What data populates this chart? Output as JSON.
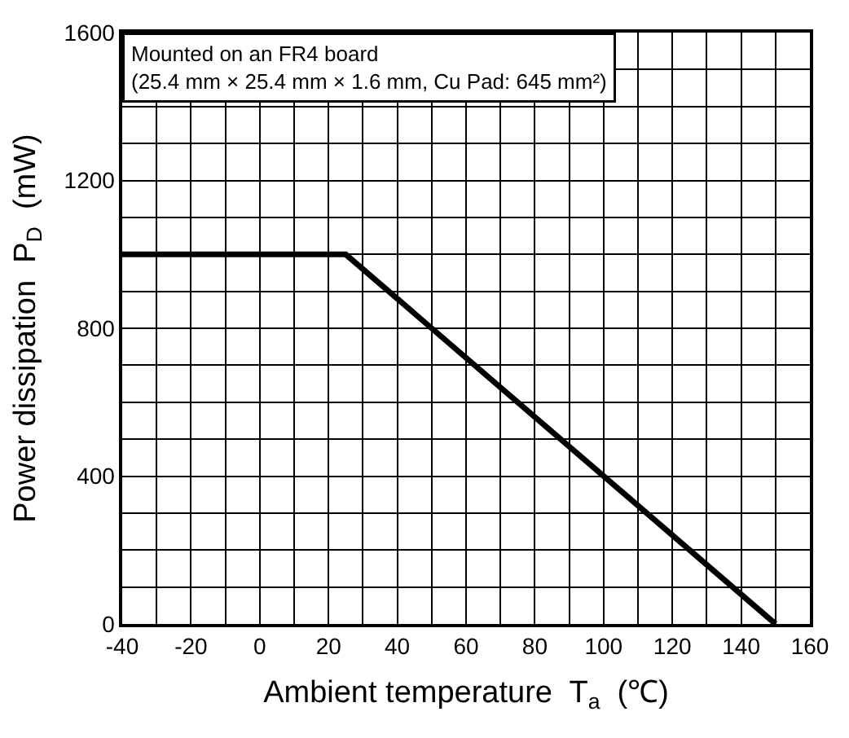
{
  "chart_data": {
    "type": "line",
    "xlabel": "Ambient temperature  T$_{a}$  (℃)",
    "ylabel": "Power dissipation  P$_{D}$  (mW)",
    "annotations": [
      "Mounted on an FR4 board",
      "(25.4 mm × 25.4 mm × 1.6 mm, Cu Pad: 645 mm²)"
    ],
    "x": [
      -40,
      25,
      150
    ],
    "series": [
      {
        "color": "#000000",
        "values": [
          1000,
          1000,
          0
        ]
      }
    ],
    "xlim": [
      -40,
      160
    ],
    "xticks": [
      -40,
      {
        "value": -30,
        "label": null
      },
      -20,
      {
        "value": -10,
        "label": null
      },
      0,
      {
        "value": 10,
        "label": null
      },
      20,
      {
        "value": 30,
        "label": null
      },
      40,
      {
        "value": 50,
        "label": null
      },
      60,
      {
        "value": 70,
        "label": null
      },
      80,
      {
        "value": 90,
        "label": null
      },
      100,
      {
        "value": 110,
        "label": null
      },
      120,
      {
        "value": 130,
        "label": null
      },
      140,
      {
        "value": 150,
        "label": null
      },
      160
    ],
    "ylim": [
      0,
      1600
    ],
    "yticks": [
      0,
      {
        "value": 100,
        "label": null
      },
      {
        "value": 200,
        "label": null
      },
      {
        "value": 300,
        "label": null
      },
      400,
      {
        "value": 500,
        "label": null
      },
      {
        "value": 600,
        "label": null
      },
      {
        "value": 700,
        "label": null
      },
      800,
      {
        "value": 900,
        "label": null
      },
      {
        "value": 1000,
        "label": null
      },
      {
        "value": 1100,
        "label": null
      },
      1200,
      {
        "value": 1300,
        "label": null
      },
      {
        "value": 1400,
        "label": null
      },
      {
        "value": 1500,
        "label": null
      },
      1600
    ],
    "grid": true,
    "marker": "none",
    "line_style": "solid"
  }
}
